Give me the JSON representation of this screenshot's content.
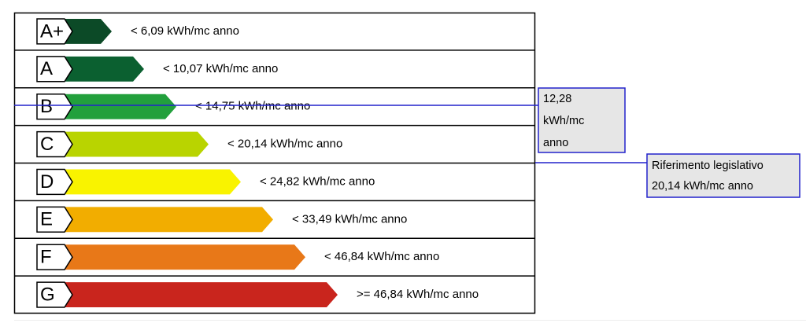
{
  "classes": [
    {
      "letter": "A+",
      "range": "< 6,09 kWh/mc anno",
      "color": "#0c4a27"
    },
    {
      "letter": "A",
      "range": "< 10,07 kWh/mc anno",
      "color": "#0b6030"
    },
    {
      "letter": "B",
      "range": "< 14,75 kWh/mc anno",
      "color": "#22a03c"
    },
    {
      "letter": "C",
      "range": "< 20,14 kWh/mc anno",
      "color": "#b9d400"
    },
    {
      "letter": "D",
      "range": "< 24,82 kWh/mc anno",
      "color": "#f9f300"
    },
    {
      "letter": "E",
      "range": "< 33,49 kWh/mc anno",
      "color": "#f2ad00"
    },
    {
      "letter": "F",
      "range": "< 46,84 kWh/mc anno",
      "color": "#e87818"
    },
    {
      "letter": "G",
      "range": ">= 46,84 kWh/mc anno",
      "color": "#c9251d"
    }
  ],
  "current": {
    "lines": [
      "12,28",
      "kWh/mc",
      "anno"
    ]
  },
  "reference": {
    "lines": [
      "Riferimento legislativo",
      "20,14 kWh/mc anno"
    ]
  }
}
